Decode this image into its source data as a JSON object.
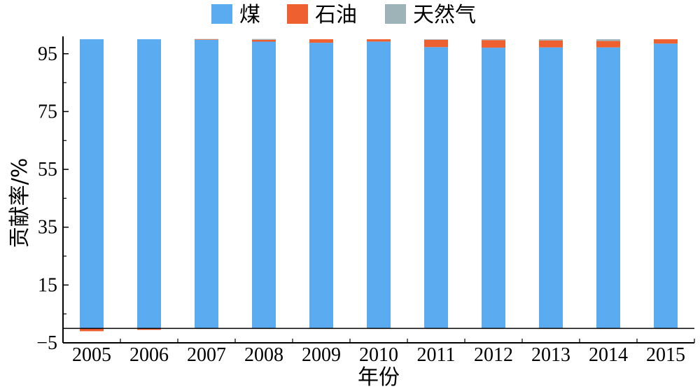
{
  "chart_data": {
    "type": "bar",
    "stacked": true,
    "categories": [
      "2005",
      "2006",
      "2007",
      "2008",
      "2009",
      "2010",
      "2011",
      "2012",
      "2013",
      "2014",
      "2015"
    ],
    "series": [
      {
        "name": "煤",
        "color": "#5aabf0",
        "values": [
          100,
          100,
          99.8,
          99.2,
          98.8,
          99.2,
          97.3,
          97.1,
          97.2,
          97.2,
          98.5
        ]
      },
      {
        "name": "石油",
        "color": "#ee6030",
        "values": [
          -1.0,
          -0.5,
          0.2,
          0.6,
          1.2,
          0.8,
          2.5,
          2.6,
          2.4,
          2.2,
          1.5
        ]
      },
      {
        "name": "天然气",
        "color": "#9eb3b8",
        "values": [
          0,
          0,
          0.1,
          0.3,
          0,
          0,
          0.2,
          0.3,
          0.4,
          0.6,
          0
        ]
      }
    ],
    "xlabel": "年份",
    "ylabel": "贡献率/%",
    "ylim": [
      -5,
      101
    ],
    "yticks": [
      -5,
      15,
      35,
      55,
      75,
      95
    ],
    "ytick_labels": [
      "−5",
      "15",
      "35",
      "55",
      "75",
      "95"
    ],
    "grid": false,
    "legend_position": "top"
  }
}
